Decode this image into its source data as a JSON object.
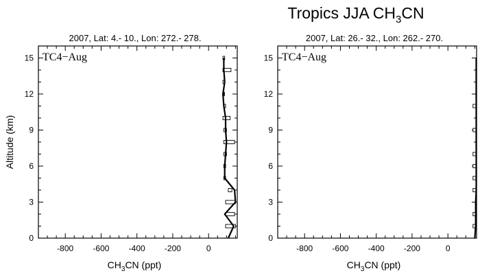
{
  "title": {
    "main": "Tropics JJA CH",
    "sub": "3",
    "tail": "CN"
  },
  "colors": {
    "line": "#000000",
    "background": "#ffffff"
  },
  "chart_data": [
    {
      "type": "line",
      "header": "2007, Lat: 4.- 10., Lon: 272.- 278.",
      "label": "TC4−Aug",
      "ylabel": "Altitude (km)",
      "xlabel": {
        "main": "CH",
        "sub": "3",
        "tail": "CN (ppt)"
      },
      "xlim": [
        -950,
        160
      ],
      "ylim": [
        0,
        16
      ],
      "xticks": [
        "-800",
        "-600",
        "-400",
        "-200",
        "0"
      ],
      "yticks": [
        "0",
        "3",
        "6",
        "9",
        "12",
        "15"
      ],
      "grid": false,
      "profile": {
        "altitude": [
          0,
          1,
          2,
          3,
          4,
          5,
          6,
          7,
          8,
          9,
          10,
          11,
          12,
          13,
          14,
          15
        ],
        "ch3cn": [
          110,
          140,
          90,
          150,
          145,
          90,
          90,
          95,
          100,
          95,
          95,
          85,
          80,
          90,
          85,
          85
        ]
      },
      "bars": {
        "altitude": [
          1,
          2,
          3,
          4,
          5,
          6,
          7,
          8,
          9,
          10,
          11,
          12,
          13,
          14,
          15
        ],
        "left": [
          95,
          95,
          95,
          110,
          85,
          85,
          85,
          85,
          85,
          80,
          85,
          85,
          80,
          80,
          80
        ],
        "right": [
          150,
          145,
          150,
          130,
          95,
          95,
          100,
          145,
          100,
          120,
          95,
          85,
          90,
          125,
          90
        ]
      }
    },
    {
      "type": "line",
      "header": "2007, Lat: 26.- 32., Lon: 262.- 270.",
      "label": "TC4−Aug",
      "ylabel": "",
      "xlabel": {
        "main": "CH",
        "sub": "3",
        "tail": "CN (ppt)"
      },
      "xlim": [
        -950,
        160
      ],
      "ylim": [
        0,
        16
      ],
      "xticks": [
        "-800",
        "-600",
        "-400",
        "-200",
        "0"
      ],
      "yticks": [
        "0",
        "3",
        "6",
        "9",
        "12",
        "15"
      ],
      "grid": false,
      "profile": {
        "altitude": [
          0,
          1,
          2,
          3,
          4,
          5,
          6,
          7,
          8,
          9,
          10,
          11,
          12,
          13,
          14,
          15
        ],
        "ch3cn": [
          150,
          155,
          155,
          155,
          158,
          158,
          158,
          158,
          158,
          158,
          158,
          158,
          158,
          158,
          158,
          158
        ]
      },
      "bars": {
        "altitude": [
          1,
          2,
          4,
          5,
          6,
          7,
          9,
          11
        ],
        "left": [
          140,
          140,
          140,
          140,
          140,
          140,
          140,
          140
        ],
        "right": [
          160,
          160,
          160,
          160,
          160,
          160,
          160,
          160
        ]
      }
    }
  ]
}
